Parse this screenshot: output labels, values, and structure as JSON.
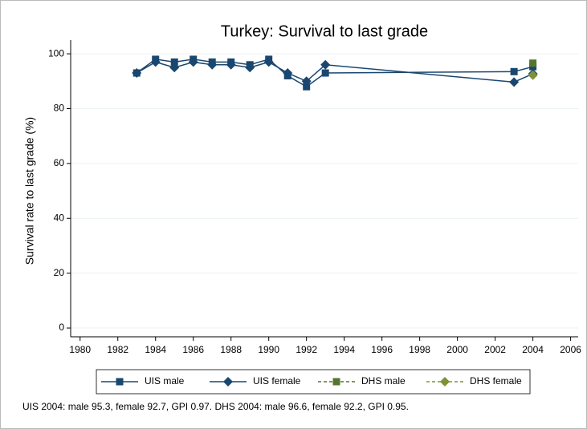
{
  "chart_data": {
    "type": "line",
    "title": "Turkey: Survival to last grade",
    "y_label": "Survival rate to last grade (%)",
    "note": "UIS 2004: male 95.3, female 92.7, GPI 0.97. DHS 2004: male 96.6, female 92.2, GPI 0.95.",
    "x": [
      1983,
      1984,
      1985,
      1986,
      1987,
      1988,
      1989,
      1990,
      1991,
      1992,
      1993,
      2003,
      2004
    ],
    "series": [
      {
        "name": "UIS male",
        "color": "#1a476f",
        "marker": "square",
        "dash": false,
        "values": [
          93,
          98,
          97,
          98,
          97,
          97,
          96,
          98,
          92,
          88,
          93,
          93.5,
          95.3
        ]
      },
      {
        "name": "UIS female",
        "color": "#1a476f",
        "marker": "diamond",
        "dash": false,
        "values": [
          93,
          97,
          95,
          97,
          96,
          96,
          95,
          97,
          93,
          90,
          96,
          89.7,
          92.7
        ]
      },
      {
        "name": "DHS male",
        "color": "#55752f",
        "marker": "square",
        "dash": true,
        "values": [
          null,
          null,
          null,
          null,
          null,
          null,
          null,
          null,
          null,
          null,
          null,
          null,
          96.6
        ]
      },
      {
        "name": "DHS female",
        "color": "#7d9235",
        "marker": "diamond",
        "dash": true,
        "values": [
          null,
          null,
          null,
          null,
          null,
          null,
          null,
          null,
          null,
          null,
          null,
          null,
          92.2
        ]
      }
    ],
    "xlim": [
      1979.5,
      2006.4
    ],
    "xticks": [
      1980,
      1982,
      1984,
      1986,
      1988,
      1990,
      1992,
      1994,
      1996,
      1998,
      2000,
      2002,
      2004,
      2006
    ],
    "ylim": [
      -3.2,
      105
    ],
    "yticks": [
      0,
      20,
      40,
      60,
      80,
      100
    ],
    "grid": true,
    "legend": "bottom"
  }
}
